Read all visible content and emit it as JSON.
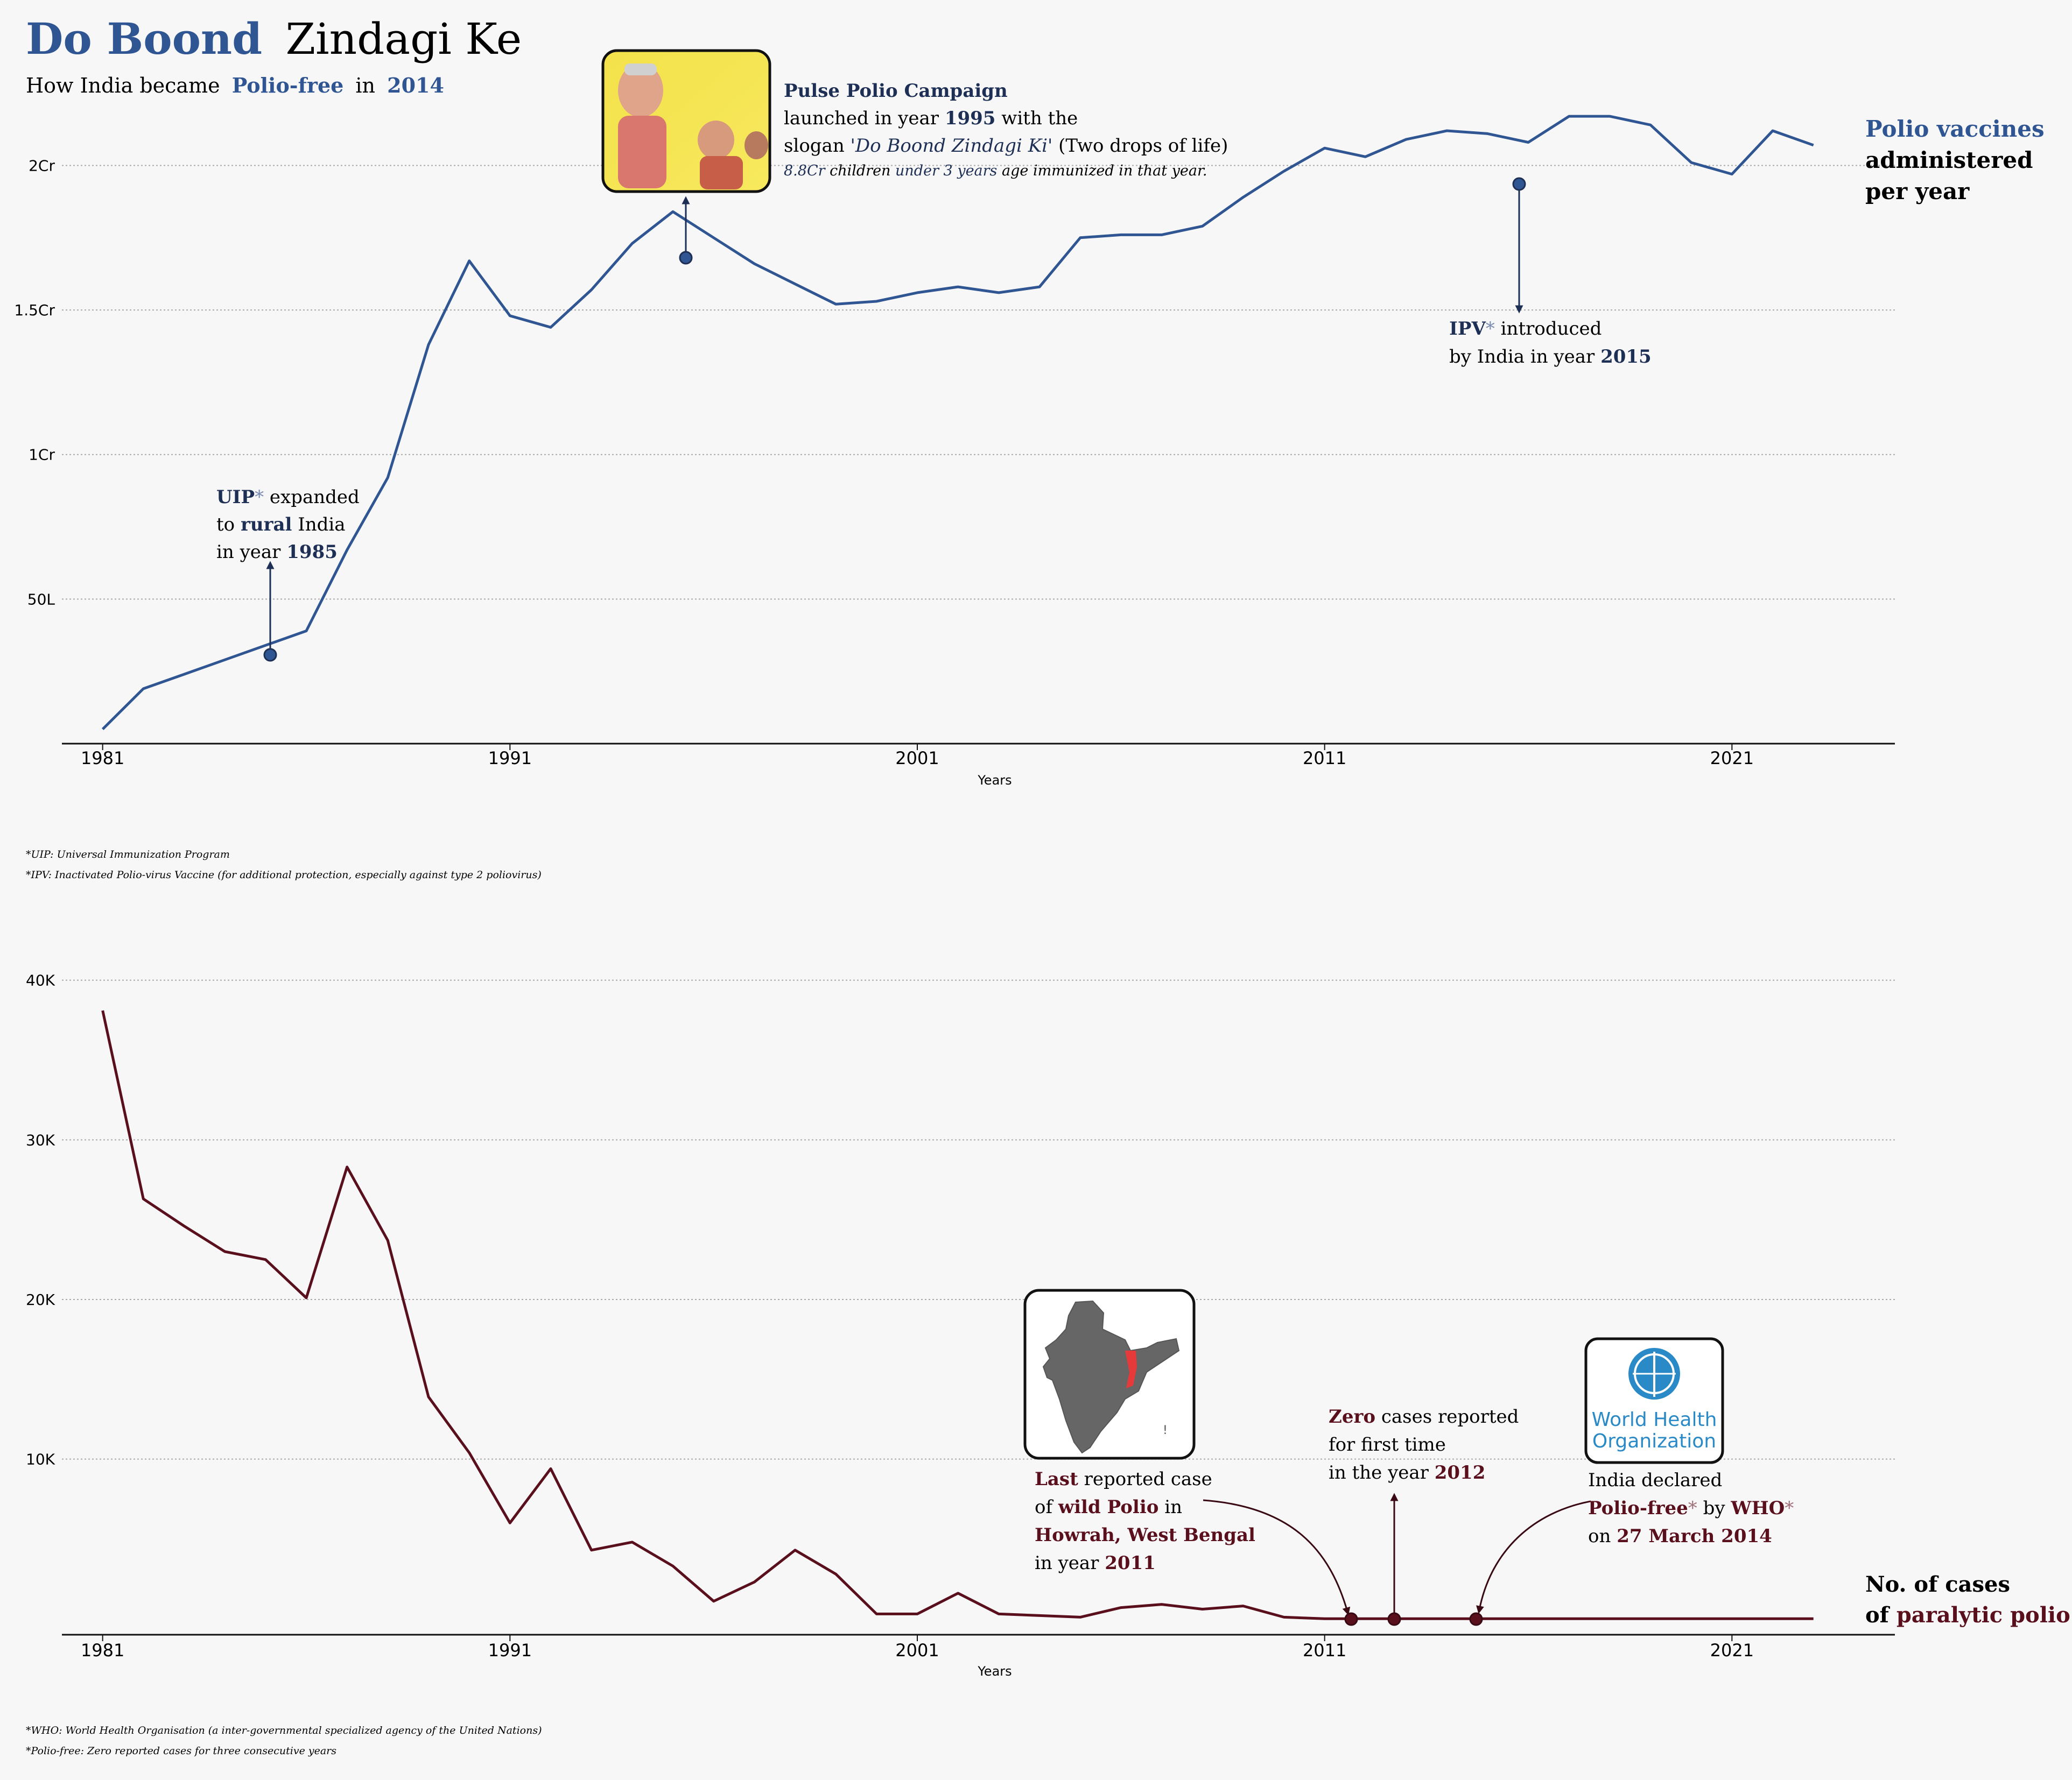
{
  "header": {
    "title_part1": "Do Boond",
    "title_part2": "Zindagi Ke",
    "subtitle_part1": "How India became",
    "subtitle_part2": "Polio-free",
    "subtitle_part3": "in",
    "subtitle_part4": "2014"
  },
  "colors": {
    "vaccine_line": "#2f5592",
    "cases_line": "#5a0f1d",
    "background": "#f7f7f7",
    "grid": "#aaaaaa"
  },
  "icons": {
    "campaign_photo": "pulse-polio-campaign-photo",
    "india_map": "india-map-west-bengal-highlight",
    "who_logo": "who-logo"
  },
  "chart_data": [
    {
      "type": "line",
      "xlabel": "Years",
      "x_ticks": [
        "1981",
        "1991",
        "2001",
        "2011",
        "2021"
      ],
      "y_ticks": [
        "50L",
        "1Cr",
        "1.5Cr",
        "2Cr"
      ],
      "y_tick_values": [
        5000000,
        10000000,
        15000000,
        20000000
      ],
      "ylim": [
        0,
        22000000
      ],
      "xlim": [
        1980,
        2025
      ],
      "grid": "horizontal-dotted",
      "x": [
        1981,
        1982,
        1983,
        1984,
        1985,
        1986,
        1987,
        1988,
        1989,
        1990,
        1991,
        1992,
        1993,
        1994,
        1995,
        1996,
        1997,
        1998,
        1999,
        2000,
        2001,
        2002,
        2003,
        2004,
        2005,
        2006,
        2007,
        2008,
        2009,
        2010,
        2011,
        2012,
        2013,
        2014,
        2015,
        2016,
        2017,
        2018,
        2019,
        2020,
        2021,
        2022,
        2023
      ],
      "values": [
        500000,
        1900000,
        2400000,
        2900000,
        3400000,
        3900000,
        6700000,
        9200000,
        13800000,
        16700000,
        14800000,
        14400000,
        15700000,
        17300000,
        18400000,
        17500000,
        16600000,
        15900000,
        15200000,
        15300000,
        15600000,
        15800000,
        15600000,
        15800000,
        17500000,
        17600000,
        17600000,
        17900000,
        18900000,
        19800000,
        20600000,
        20300000,
        20900000,
        21200000,
        21100000,
        20800000,
        21700000,
        21700000,
        21400000,
        20100000,
        19700000,
        21200000,
        20700000
      ],
      "series_label_part1": "Polio vaccines",
      "series_label_part2": "administered",
      "series_label_part3": "per year",
      "annotations": [
        {
          "x": 1985,
          "y": 3400000,
          "line1_bold": "UIP",
          "line1_star": "*",
          "line1_rest": " expanded",
          "line2_pre": "to ",
          "line2_bold": "rural",
          "line2_post": " India",
          "line3_pre": "in year ",
          "line3_bold": "1985"
        },
        {
          "x": 1995,
          "y": 18400000,
          "title": "Pulse Polio Campaign",
          "line2_pre": "launched in year ",
          "line2_bold": "1995",
          "line2_post": " with the",
          "line3_pre": "slogan ",
          "line3_italic": "'Do Boond Zindagi Ki'",
          "line3_post": " (Two drops of life)",
          "line4_a": "8.8Cr",
          "line4_b": " children ",
          "line4_c": "under 3 years",
          "line4_d": " age immunized in that year."
        },
        {
          "x": 2015,
          "y": 21100000,
          "line1_bold": "IPV",
          "line1_star": "*",
          "line1_rest": " introduced",
          "line2_pre": "by India in year ",
          "line2_bold": "2015"
        }
      ]
    },
    {
      "type": "line",
      "xlabel": "Years",
      "x_ticks": [
        "1981",
        "1991",
        "2001",
        "2011",
        "2021"
      ],
      "y_ticks": [
        "10K",
        "20K",
        "30K",
        "40K"
      ],
      "y_tick_values": [
        10000,
        20000,
        30000,
        40000
      ],
      "ylim": [
        -1000,
        41000
      ],
      "xlim": [
        1980,
        2025
      ],
      "grid": "horizontal-dotted",
      "x": [
        1981,
        1982,
        1983,
        1984,
        1985,
        1986,
        1987,
        1988,
        1989,
        1990,
        1991,
        1992,
        1993,
        1994,
        1995,
        1996,
        1997,
        1998,
        1999,
        2000,
        2001,
        2002,
        2003,
        2004,
        2005,
        2006,
        2007,
        2008,
        2009,
        2010,
        2011,
        2012,
        2013,
        2014,
        2015,
        2016,
        2017,
        2018,
        2019,
        2020,
        2021,
        2022,
        2023
      ],
      "values": [
        38100,
        26300,
        24600,
        23000,
        22500,
        20100,
        28300,
        23700,
        13900,
        10400,
        6000,
        9400,
        4300,
        4800,
        3300,
        1100,
        2300,
        4300,
        2800,
        300,
        300,
        1600,
        300,
        200,
        100,
        700,
        900,
        600,
        800,
        100,
        1,
        0,
        0,
        0,
        0,
        0,
        0,
        0,
        0,
        0,
        0,
        0,
        0
      ],
      "series_label_part1": "No. of cases",
      "series_label_part2": "of ",
      "series_label_part3": "paralytic polio",
      "annotations": [
        {
          "x": 2011,
          "y": 0,
          "line1_bold": "Last",
          "line1_rest": " reported case",
          "line2_pre": "of ",
          "line2_bold": "wild Polio",
          "line2_post": " in",
          "line3_bold": "Howrah, West Bengal",
          "line4_pre": "in year ",
          "line4_bold": "2011"
        },
        {
          "x": 2012,
          "y": 0,
          "line1_bold": "Zero",
          "line1_rest": " cases reported",
          "line2": "for first time",
          "line3_pre": "in the year ",
          "line3_bold": "2012"
        },
        {
          "x": 2014,
          "y": 0,
          "line1": "India declared",
          "line2_bold": "Polio-free",
          "line2_star": "*",
          "line2_mid": " by ",
          "line2_bold2": "WHO",
          "line2_star2": "*",
          "line3_pre": "on ",
          "line3_bold": "27 March 2014"
        }
      ]
    }
  ],
  "footnotes": {
    "uip": "*UIP: Universal Immunization Program",
    "ipv": "*IPV: Inactivated Polio-virus Vaccine (for additional protection, especially against type 2 poliovirus)",
    "who": "*WHO: World Health Organisation (a inter-governmental specialized agency of the United Nations)",
    "polio_free": "*Polio-free: Zero reported cases for three consecutive years"
  },
  "who_logo_text_1": "World Health",
  "who_logo_text_2": "Organization"
}
